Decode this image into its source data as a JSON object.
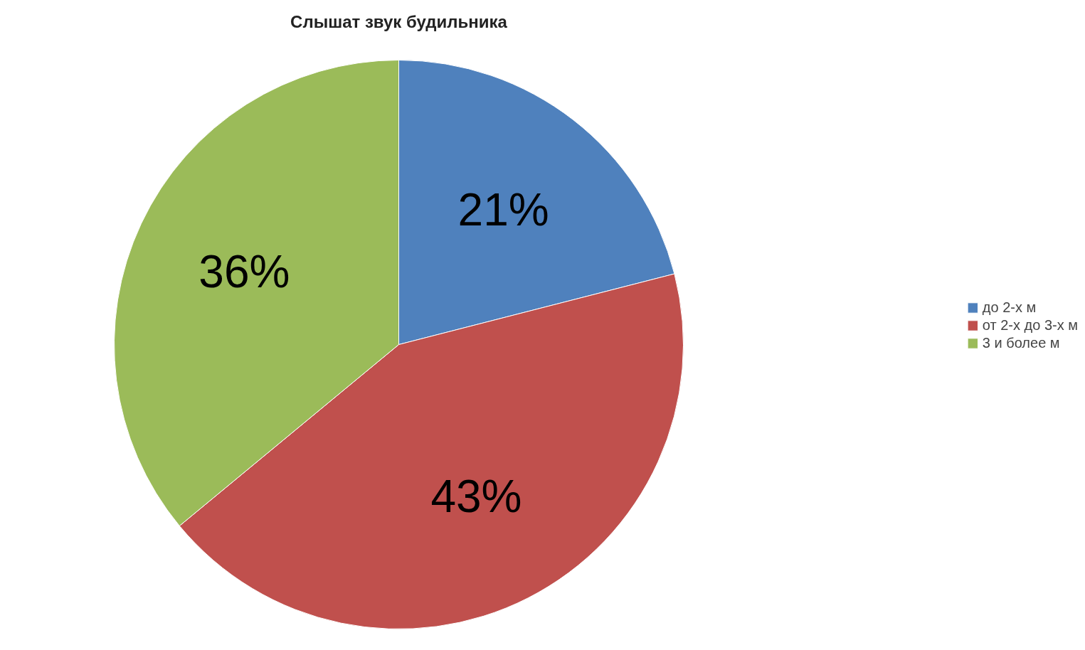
{
  "chart_data": {
    "type": "pie",
    "title": "Слышат звук будильника",
    "categories": [
      "до 2-х м",
      "от 2-х до 3-х м",
      "3 и более м"
    ],
    "values": [
      21,
      43,
      36
    ],
    "colors": [
      "#4f81bd",
      "#c0504d",
      "#9bbb59"
    ],
    "value_labels": [
      "21%",
      "43%",
      "36%"
    ],
    "legend": "right"
  }
}
